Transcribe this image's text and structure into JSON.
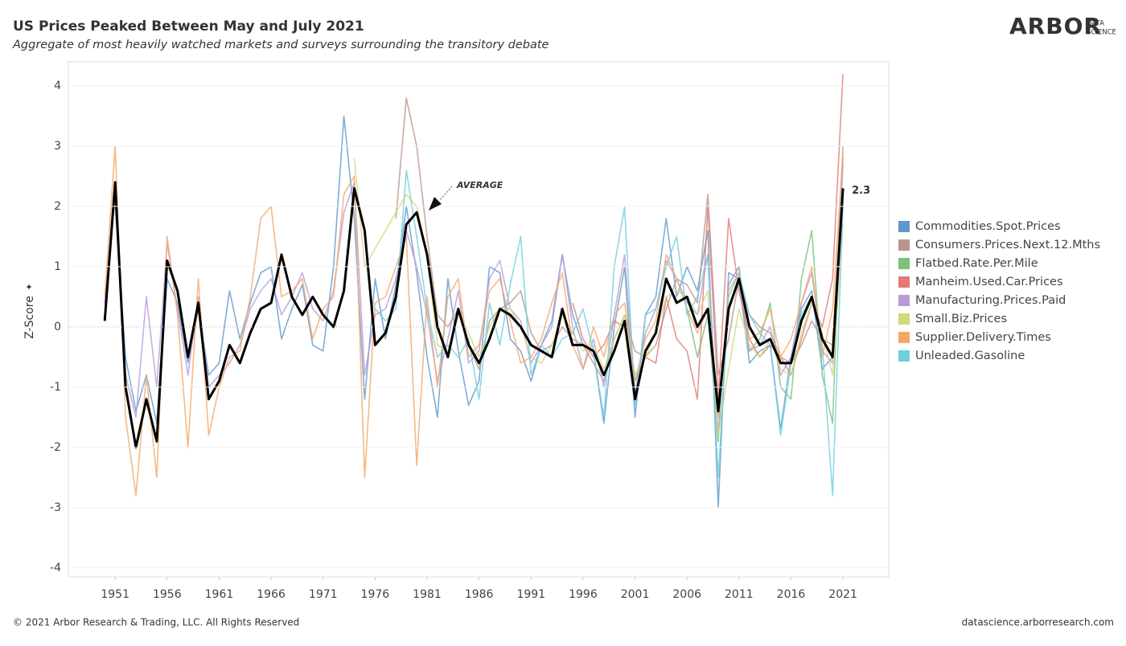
{
  "chart_data": {
    "type": "line",
    "title": "US Prices Peaked Between May and July 2021",
    "subtitle": "Aggregate of most heavily watched markets and surveys surrounding the transitory debate",
    "y_label": "Z-Score",
    "logo": {
      "name": "ARBOR",
      "tag": [
        "DATA",
        "SCIENCE"
      ]
    },
    "footer_left": "© 2021 Arbor Research & Trading, LLC. All Rights Reserved",
    "footer_right": "datascience.arborresearch.com",
    "xlim": [
      1946.5,
      2025.4
    ],
    "ylim": [
      -4.15,
      4.4
    ],
    "xticks": [
      1951,
      1956,
      1961,
      1966,
      1971,
      1976,
      1981,
      1986,
      1991,
      1996,
      2001,
      2006,
      2011,
      2016,
      2021
    ],
    "yticks": [
      -4,
      -3,
      -2,
      -1,
      0,
      1,
      2,
      3,
      4
    ],
    "grid": true,
    "x": [
      1950,
      1951,
      1952,
      1953,
      1954,
      1955,
      1956,
      1957,
      1958,
      1959,
      1960,
      1961,
      1962,
      1963,
      1964,
      1965,
      1966,
      1967,
      1968,
      1969,
      1970,
      1971,
      1972,
      1973,
      1974,
      1975,
      1976,
      1977,
      1978,
      1979,
      1980,
      1981,
      1982,
      1983,
      1984,
      1985,
      1986,
      1987,
      1988,
      1989,
      1990,
      1991,
      1992,
      1993,
      1994,
      1995,
      1996,
      1997,
      1998,
      1999,
      2000,
      2001,
      2002,
      2003,
      2004,
      2005,
      2006,
      2007,
      2008,
      2009,
      2010,
      2011,
      2012,
      2013,
      2014,
      2015,
      2016,
      2017,
      2018,
      2019,
      2020,
      2021
    ],
    "series": [
      {
        "name": "Commodities.Spot.Prices",
        "color": "#5f98cc",
        "values": [
          null,
          2.0,
          -0.5,
          -1.4,
          -0.8,
          -1.6,
          0.8,
          0.4,
          -0.6,
          0.3,
          -0.8,
          -0.6,
          0.6,
          -0.2,
          0.4,
          0.9,
          1.0,
          -0.2,
          0.3,
          0.7,
          -0.3,
          -0.4,
          1.0,
          3.5,
          1.8,
          -1.2,
          0.8,
          -0.2,
          0.7,
          2.0,
          0.9,
          -0.5,
          -1.5,
          0.8,
          -0.4,
          -1.3,
          -0.9,
          1.0,
          0.9,
          -0.2,
          -0.4,
          -0.9,
          -0.3,
          0.1,
          1.2,
          0.2,
          -0.3,
          -0.4,
          -1.6,
          0.0,
          1.0,
          -1.5,
          0.2,
          0.5,
          1.8,
          0.5,
          1.0,
          0.6,
          1.6,
          -3.0,
          0.9,
          0.8,
          -0.6,
          -0.4,
          -0.3,
          -1.7,
          -0.5,
          0.3,
          0.6,
          -0.7,
          -0.5,
          2.2
        ]
      },
      {
        "name": "Consumers.Prices.Next.12.Mths",
        "color": "#b8968a",
        "values": [
          null,
          null,
          null,
          null,
          null,
          null,
          null,
          null,
          null,
          null,
          null,
          null,
          null,
          null,
          null,
          null,
          null,
          null,
          null,
          null,
          null,
          null,
          null,
          null,
          null,
          null,
          null,
          null,
          1.8,
          3.8,
          3.0,
          1.5,
          0.2,
          0.0,
          0.3,
          -0.3,
          -0.7,
          0.1,
          0.3,
          0.4,
          0.6,
          -0.1,
          -0.4,
          -0.3,
          0.0,
          -0.2,
          -0.3,
          -0.6,
          -0.9,
          -0.2,
          0.2,
          -0.4,
          -0.5,
          -0.3,
          0.3,
          0.8,
          0.7,
          0.4,
          2.2,
          -0.8,
          -0.2,
          0.8,
          0.2,
          0.0,
          -0.1,
          -0.5,
          -0.6,
          -0.3,
          0.1,
          -0.2,
          -0.3,
          2.8
        ]
      },
      {
        "name": "Flatbed.Rate.Per.Mile",
        "color": "#7cc07a",
        "values": [
          null,
          null,
          null,
          null,
          null,
          null,
          null,
          null,
          null,
          null,
          null,
          null,
          null,
          null,
          null,
          null,
          null,
          null,
          null,
          null,
          null,
          null,
          null,
          null,
          null,
          null,
          null,
          null,
          null,
          null,
          null,
          null,
          null,
          null,
          null,
          null,
          null,
          null,
          null,
          null,
          null,
          null,
          null,
          null,
          null,
          null,
          null,
          null,
          null,
          null,
          null,
          null,
          null,
          null,
          null,
          null,
          0.3,
          -0.5,
          0.2,
          -1.9,
          0.7,
          1.0,
          -0.4,
          -0.2,
          0.4,
          -1.0,
          -1.2,
          0.8,
          1.6,
          -0.8,
          -1.6,
          3.0
        ]
      },
      {
        "name": "Manheim.Used.Car.Prices",
        "color": "#e07b77",
        "values": [
          null,
          null,
          null,
          null,
          null,
          null,
          null,
          null,
          null,
          null,
          null,
          null,
          null,
          null,
          null,
          null,
          null,
          null,
          null,
          null,
          null,
          null,
          null,
          null,
          null,
          null,
          null,
          null,
          null,
          null,
          null,
          null,
          null,
          null,
          null,
          null,
          null,
          null,
          null,
          null,
          null,
          null,
          null,
          null,
          null,
          0.4,
          -0.2,
          -0.5,
          -0.3,
          0.1,
          0.0,
          -0.9,
          -0.5,
          -0.6,
          0.5,
          -0.2,
          -0.4,
          -1.2,
          2.0,
          -1.2,
          1.8,
          0.6,
          -0.2,
          -0.5,
          -0.3,
          -0.5,
          -0.8,
          -0.2,
          0.4,
          0.0,
          0.8,
          4.2
        ]
      },
      {
        "name": "Manufacturing.Prices.Paid",
        "color": "#b89bd8",
        "values": [
          0.4,
          2.2,
          -0.8,
          -1.5,
          0.5,
          -1.0,
          1.4,
          0.3,
          -0.8,
          0.5,
          -1.0,
          -0.8,
          -0.6,
          -0.3,
          0.3,
          0.6,
          0.8,
          0.2,
          0.5,
          0.9,
          0.3,
          0.1,
          0.6,
          1.9,
          2.4,
          -0.8,
          0.2,
          0.3,
          0.8,
          1.6,
          1.0,
          0.2,
          -0.9,
          -0.2,
          0.6,
          -0.6,
          -0.4,
          0.8,
          1.1,
          0.3,
          0.1,
          -0.6,
          -0.3,
          0.0,
          1.2,
          0.0,
          -0.7,
          -0.2,
          -1.0,
          0.2,
          1.2,
          -1.1,
          -0.1,
          0.3,
          1.1,
          0.8,
          0.4,
          0.2,
          1.2,
          -1.8,
          0.7,
          1.0,
          -0.4,
          -0.3,
          0.0,
          -0.8,
          -0.5,
          0.4,
          0.9,
          -0.4,
          -0.6,
          2.7
        ]
      },
      {
        "name": "Small.Biz.Prices",
        "color": "#d4d77a",
        "values": [
          null,
          null,
          null,
          null,
          null,
          null,
          null,
          null,
          null,
          null,
          null,
          null,
          null,
          null,
          null,
          null,
          null,
          null,
          null,
          null,
          null,
          null,
          null,
          null,
          2.8,
          1.0,
          1.3,
          1.6,
          1.9,
          2.2,
          2.0,
          1.2,
          -0.3,
          -0.4,
          0.2,
          -0.1,
          -0.5,
          0.0,
          0.3,
          0.3,
          0.0,
          -0.5,
          -0.6,
          -0.3,
          0.2,
          -0.1,
          -0.4,
          -0.3,
          -0.7,
          -0.2,
          0.2,
          -0.8,
          -0.5,
          -0.1,
          0.5,
          0.6,
          0.5,
          0.2,
          0.6,
          -1.8,
          -0.7,
          0.3,
          -0.3,
          -0.5,
          -0.2,
          -0.7,
          -0.8,
          -0.1,
          0.4,
          -0.1,
          -0.8,
          1.7
        ]
      },
      {
        "name": "Supplier.Delivery.Times",
        "color": "#f5a767",
        "values": [
          0.5,
          3.0,
          -1.5,
          -2.8,
          -0.8,
          -2.5,
          1.5,
          0.2,
          -2.0,
          0.8,
          -1.8,
          -1.0,
          -0.5,
          -0.4,
          0.5,
          1.8,
          2.0,
          0.5,
          0.6,
          0.8,
          -0.2,
          0.3,
          0.5,
          2.2,
          2.5,
          -2.5,
          0.4,
          0.5,
          1.0,
          1.5,
          -2.3,
          0.5,
          -1.0,
          0.5,
          0.8,
          -0.5,
          -0.3,
          0.6,
          0.8,
          0.1,
          -0.6,
          -0.5,
          -0.2,
          0.4,
          0.9,
          -0.3,
          -0.7,
          0.0,
          -0.5,
          0.2,
          0.4,
          -0.9,
          -0.2,
          0.1,
          1.2,
          0.8,
          0.3,
          -0.1,
          0.3,
          -1.5,
          0.6,
          0.9,
          -0.2,
          -0.1,
          0.3,
          -0.5,
          -0.2,
          0.4,
          1.0,
          -0.5,
          0.3,
          2.9
        ]
      },
      {
        "name": "Unleaded.Gasoline",
        "color": "#6fcfdc",
        "values": [
          null,
          null,
          null,
          null,
          null,
          null,
          null,
          null,
          null,
          null,
          null,
          null,
          null,
          null,
          null,
          null,
          null,
          null,
          null,
          null,
          null,
          null,
          null,
          null,
          null,
          null,
          0.3,
          0.1,
          0.3,
          2.6,
          1.5,
          0.3,
          -0.5,
          -0.3,
          -0.5,
          -0.2,
          -1.2,
          0.4,
          -0.3,
          0.7,
          1.5,
          -0.8,
          -0.3,
          -0.5,
          -0.2,
          -0.1,
          0.3,
          -0.4,
          -1.5,
          1.0,
          2.0,
          -1.3,
          0.2,
          0.3,
          1.0,
          1.5,
          0.2,
          0.5,
          1.2,
          -2.5,
          0.5,
          0.9,
          0.2,
          -0.1,
          -0.3,
          -1.8,
          -0.6,
          0.2,
          0.5,
          -0.3,
          -2.8,
          2.0
        ]
      }
    ],
    "average": {
      "label": "AVERAGE",
      "color": "#000000",
      "values": [
        0.1,
        2.4,
        -1.0,
        -2.0,
        -1.2,
        -1.9,
        1.1,
        0.6,
        -0.5,
        0.4,
        -1.2,
        -0.9,
        -0.3,
        -0.6,
        -0.1,
        0.3,
        0.4,
        1.2,
        0.5,
        0.2,
        0.5,
        0.2,
        0.0,
        0.6,
        2.3,
        1.6,
        -0.3,
        -0.1,
        0.5,
        1.7,
        1.9,
        1.2,
        0.0,
        -0.5,
        0.3,
        -0.3,
        -0.6,
        -0.2,
        0.3,
        0.2,
        0.0,
        -0.3,
        -0.4,
        -0.5,
        0.3,
        -0.3,
        -0.3,
        -0.4,
        -0.8,
        -0.4,
        0.1,
        -1.2,
        -0.4,
        -0.1,
        0.8,
        0.4,
        0.5,
        0.0,
        0.3,
        -1.4,
        0.3,
        0.8,
        0.0,
        -0.3,
        -0.2,
        -0.6,
        -0.6,
        0.1,
        0.5,
        -0.2,
        -0.5,
        2.3
      ]
    }
  }
}
